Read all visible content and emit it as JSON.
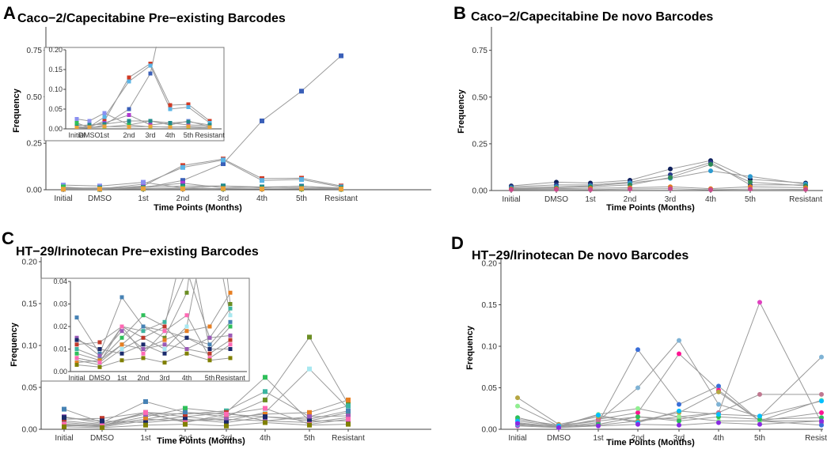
{
  "figure": {
    "x_label": "Time Points (Months)",
    "y_label": "Frequency"
  },
  "chart_data": [
    {
      "letter": "A",
      "type": "line",
      "marker": "square",
      "title": "Caco−2/Capecitabine Pre−existing Barcodes",
      "categories": [
        "Initial",
        "DMSO",
        "1st",
        "2nd",
        "3rd",
        "4th",
        "5th",
        "Resistant"
      ],
      "ylim": [
        0,
        0.85
      ],
      "yticks": [
        "0.00",
        "0.25",
        "0.50",
        "0.75"
      ],
      "ytick_values": [
        0,
        0.25,
        0.5,
        0.75
      ],
      "series": [
        {
          "color": "#3a5fb8",
          "values": [
            0.003,
            0.002,
            0.01,
            0.05,
            0.14,
            0.37,
            0.53,
            0.72
          ]
        },
        {
          "color": "#d13a24",
          "values": [
            0.005,
            0.004,
            0.02,
            0.13,
            0.165,
            0.06,
            0.062,
            0.02
          ]
        },
        {
          "color": "#5ab4e6",
          "values": [
            0.004,
            0.005,
            0.03,
            0.12,
            0.16,
            0.05,
            0.055,
            0.015
          ]
        },
        {
          "color": "#8a8ff0",
          "values": [
            0.025,
            0.02,
            0.04,
            0.01,
            0.02,
            0.01,
            0.02,
            0.005
          ]
        },
        {
          "color": "#b03ad0",
          "values": [
            0.01,
            0.008,
            0.015,
            0.035,
            0.01,
            0.015,
            0.01,
            0.008
          ]
        },
        {
          "color": "#1f8a8a",
          "values": [
            0.008,
            0.01,
            0.012,
            0.02,
            0.02,
            0.015,
            0.018,
            0.01
          ]
        },
        {
          "color": "#2fbf5a",
          "values": [
            0.015,
            0.003,
            0.005,
            0.01,
            0.005,
            0.005,
            0.004,
            0.003
          ]
        },
        {
          "color": "#e8a23a",
          "values": [
            0.003,
            0.004,
            0.006,
            0.005,
            0.006,
            0.004,
            0.006,
            0.004
          ]
        }
      ],
      "inset": {
        "ylim": [
          0,
          0.2
        ],
        "yticks": [
          "0.00",
          "0.05",
          "0.10",
          "0.15",
          "0.20"
        ],
        "ytick_values": [
          0,
          0.05,
          0.1,
          0.15,
          0.2
        ]
      }
    },
    {
      "letter": "B",
      "type": "line",
      "marker": "circle",
      "title": "Caco−2/Capecitabine De novo Barcodes",
      "categories": [
        "Initial",
        "DMSO",
        "1st",
        "2nd",
        "3rd",
        "4th",
        "5th",
        "Resistant"
      ],
      "ylim": [
        0,
        0.85
      ],
      "yticks": [
        "0.00",
        "0.25",
        "0.50",
        "0.75"
      ],
      "ytick_values": [
        0,
        0.25,
        0.5,
        0.75
      ],
      "series": [
        {
          "color": "#0d1f5c",
          "values": [
            0.025,
            0.045,
            0.04,
            0.055,
            0.115,
            0.16,
            0.06,
            0.04
          ]
        },
        {
          "color": "#2a3a8c",
          "values": [
            0.02,
            0.03,
            0.03,
            0.045,
            0.085,
            0.15,
            0.03,
            0.03
          ]
        },
        {
          "color": "#2c9ad0",
          "values": [
            0.015,
            0.02,
            0.025,
            0.04,
            0.065,
            0.105,
            0.075,
            0.035
          ]
        },
        {
          "color": "#2e8b57",
          "values": [
            0.01,
            0.015,
            0.02,
            0.03,
            0.07,
            0.14,
            0.045,
            0.025
          ]
        },
        {
          "color": "#e07a20",
          "values": [
            0.008,
            0.01,
            0.012,
            0.015,
            0.02,
            0.01,
            0.02,
            0.015
          ]
        },
        {
          "color": "#c84a8a",
          "values": [
            0.005,
            0.006,
            0.005,
            0.008,
            0.01,
            0.004,
            0.008,
            0.006
          ]
        }
      ]
    },
    {
      "letter": "C",
      "type": "line",
      "marker": "square",
      "title": "HT−29/Irinotecan Pre−existing Barcodes",
      "categories": [
        "Initial",
        "DMSO",
        "1st",
        "2nd",
        "3rd",
        "4th",
        "5th",
        "Resistant"
      ],
      "ylim": [
        0,
        0.2
      ],
      "yticks": [
        "0.00",
        "0.05",
        "0.10",
        "0.15",
        "0.20"
      ],
      "ytick_values": [
        0,
        0.05,
        0.1,
        0.15,
        0.2
      ],
      "series": [
        {
          "color": "#6b8e23",
          "values": [
            0.006,
            0.004,
            0.012,
            0.02,
            0.015,
            0.035,
            0.11,
            0.03
          ]
        },
        {
          "color": "#a8e8f0",
          "values": [
            0.005,
            0.003,
            0.01,
            0.015,
            0.01,
            0.02,
            0.072,
            0.025
          ]
        },
        {
          "color": "#2fbf5a",
          "values": [
            0.008,
            0.005,
            0.015,
            0.025,
            0.02,
            0.062,
            0.01,
            0.02
          ]
        },
        {
          "color": "#3cb4a0",
          "values": [
            0.01,
            0.006,
            0.02,
            0.018,
            0.022,
            0.045,
            0.015,
            0.028
          ]
        },
        {
          "color": "#4682b4",
          "values": [
            0.024,
            0.008,
            0.033,
            0.02,
            0.018,
            0.015,
            0.012,
            0.022
          ]
        },
        {
          "color": "#c0392b",
          "values": [
            0.012,
            0.013,
            0.02,
            0.015,
            0.02,
            0.01,
            0.008,
            0.014
          ]
        },
        {
          "color": "#e67e22",
          "values": [
            0.004,
            0.005,
            0.012,
            0.01,
            0.014,
            0.018,
            0.02,
            0.035
          ]
        },
        {
          "color": "#9b59b6",
          "values": [
            0.015,
            0.007,
            0.018,
            0.01,
            0.012,
            0.01,
            0.015,
            0.016
          ]
        },
        {
          "color": "#1a2a6c",
          "values": [
            0.014,
            0.01,
            0.008,
            0.012,
            0.008,
            0.015,
            0.01,
            0.01
          ]
        },
        {
          "color": "#ff69b4",
          "values": [
            0.006,
            0.004,
            0.02,
            0.008,
            0.018,
            0.025,
            0.006,
            0.012
          ]
        },
        {
          "color": "#808000",
          "values": [
            0.003,
            0.002,
            0.005,
            0.006,
            0.004,
            0.008,
            0.005,
            0.006
          ]
        }
      ],
      "inset": {
        "ylim": [
          0,
          0.04
        ],
        "yticks": [
          "0.00",
          "0.01",
          "0.02",
          "0.03",
          "0.04"
        ],
        "ytick_values": [
          0,
          0.01,
          0.02,
          0.03,
          0.04
        ]
      }
    },
    {
      "letter": "D",
      "type": "line",
      "marker": "circle",
      "title": "HT−29/Irinotecan De novo Barcodes",
      "categories": [
        "Initial",
        "DMSO",
        "1st",
        "2nd",
        "3rd",
        "4th",
        "5th",
        "Resistant"
      ],
      "ylim": [
        0,
        0.2
      ],
      "yticks": [
        "0.00",
        "0.05",
        "0.10",
        "0.15",
        "0.20"
      ],
      "ytick_values": [
        0,
        0.05,
        0.1,
        0.15,
        0.2
      ],
      "series": [
        {
          "color": "#e040c0",
          "values": [
            0.004,
            0.002,
            0.005,
            0.01,
            0.015,
            0.02,
            0.153,
            0.008
          ]
        },
        {
          "color": "#3a6ed8",
          "values": [
            0.005,
            0.003,
            0.008,
            0.096,
            0.03,
            0.052,
            0.01,
            0.005
          ]
        },
        {
          "color": "#7fb3d5",
          "values": [
            0.006,
            0.004,
            0.01,
            0.05,
            0.107,
            0.03,
            0.015,
            0.087
          ]
        },
        {
          "color": "#ff1493",
          "values": [
            0.008,
            0.003,
            0.012,
            0.02,
            0.091,
            0.047,
            0.01,
            0.02
          ]
        },
        {
          "color": "#b5a642",
          "values": [
            0.038,
            0.006,
            0.015,
            0.01,
            0.02,
            0.045,
            0.01,
            0.01
          ]
        },
        {
          "color": "#c07890",
          "values": [
            0.012,
            0.005,
            0.01,
            0.015,
            0.012,
            0.02,
            0.042,
            0.042
          ]
        },
        {
          "color": "#90ee90",
          "values": [
            0.028,
            0.004,
            0.018,
            0.025,
            0.015,
            0.01,
            0.01,
            0.035
          ]
        },
        {
          "color": "#2fbf5a",
          "values": [
            0.014,
            0.003,
            0.006,
            0.015,
            0.01,
            0.015,
            0.012,
            0.014
          ]
        },
        {
          "color": "#00bfff",
          "values": [
            0.01,
            0.004,
            0.017,
            0.008,
            0.022,
            0.018,
            0.016,
            0.034
          ]
        },
        {
          "color": "#8a2be2",
          "values": [
            0.007,
            0.002,
            0.004,
            0.006,
            0.005,
            0.008,
            0.006,
            0.01
          ]
        }
      ]
    }
  ]
}
